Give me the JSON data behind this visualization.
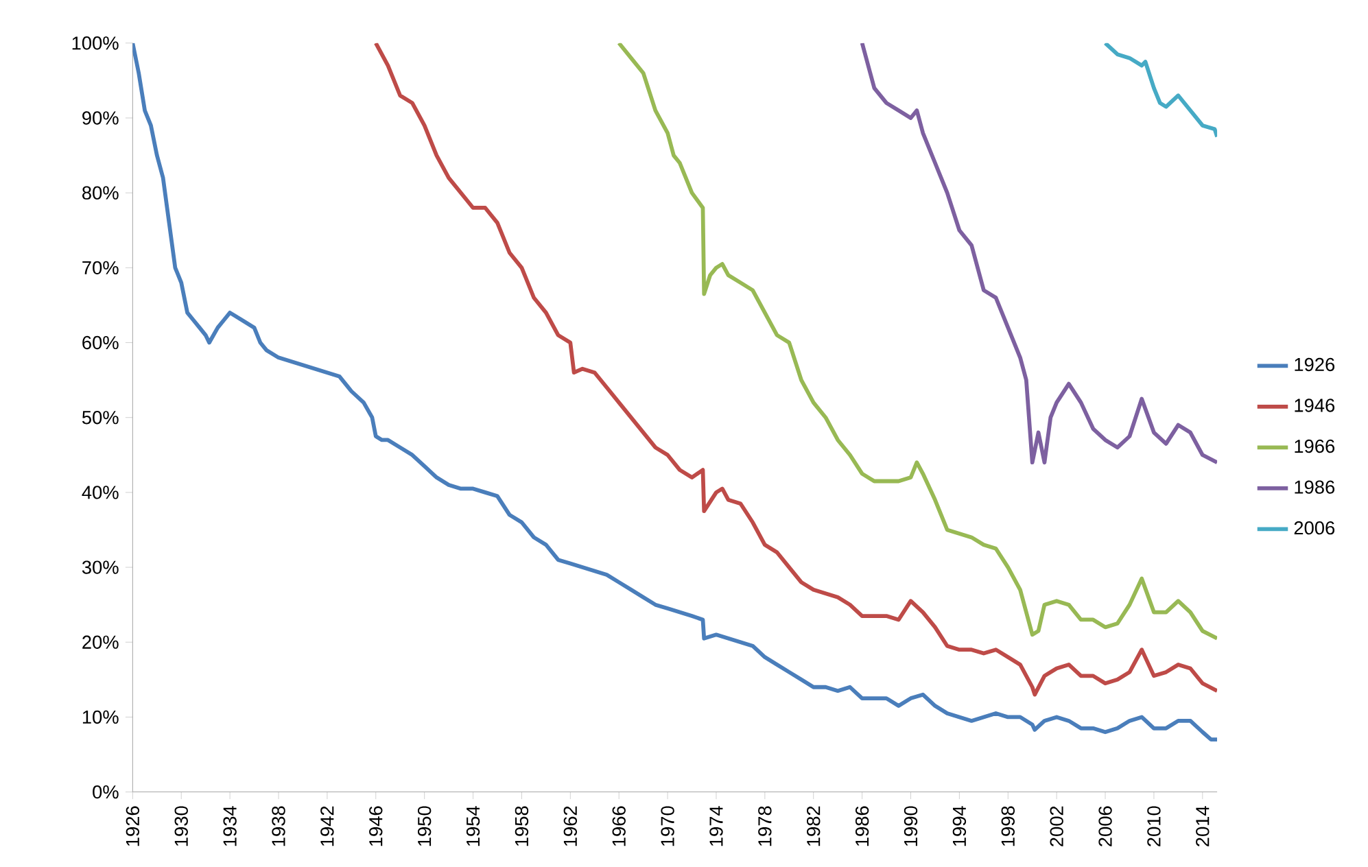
{
  "chart_data": {
    "type": "line",
    "xlim": [
      1926,
      2015.2
    ],
    "ylim": [
      0,
      100
    ],
    "xticks": [
      1926,
      1930,
      1934,
      1938,
      1942,
      1946,
      1950,
      1954,
      1958,
      1962,
      1966,
      1970,
      1974,
      1978,
      1982,
      1986,
      1990,
      1994,
      1998,
      2002,
      2006,
      2010,
      2014
    ],
    "yticks": [
      {
        "value": 0,
        "label": "0%"
      },
      {
        "value": 10,
        "label": "10%"
      },
      {
        "value": 20,
        "label": "20%"
      },
      {
        "value": 30,
        "label": "30%"
      },
      {
        "value": 40,
        "label": "40%"
      },
      {
        "value": 50,
        "label": "50%"
      },
      {
        "value": 60,
        "label": "60%"
      },
      {
        "value": 70,
        "label": "70%"
      },
      {
        "value": 80,
        "label": "80%"
      },
      {
        "value": 90,
        "label": "90%"
      },
      {
        "value": 100,
        "label": "100%"
      }
    ],
    "grid": false,
    "legend": "right",
    "marker": "none",
    "line_style": "solid",
    "series": [
      {
        "name": "1926",
        "color": "#4a7ebb",
        "x": [
          1926,
          1926.5,
          1927,
          1927.5,
          1928,
          1928.5,
          1929,
          1929.5,
          1930,
          1930.5,
          1931,
          1931.5,
          1932,
          1932.3,
          1933,
          1933.5,
          1934,
          1935,
          1936,
          1936.5,
          1937,
          1938,
          1939,
          1940,
          1941,
          1942,
          1943,
          1944,
          1945,
          1945.7,
          1946,
          1946.5,
          1947,
          1948,
          1949,
          1950,
          1951,
          1952,
          1953,
          1954,
          1955,
          1956,
          1957,
          1958,
          1959,
          1960,
          1961,
          1962,
          1963,
          1964,
          1965,
          1966,
          1967,
          1968,
          1969,
          1970,
          1971,
          1972,
          1972.9,
          1973,
          1974,
          1975,
          1976,
          1977,
          1978,
          1979,
          1980,
          1981,
          1982,
          1983,
          1984,
          1985,
          1986,
          1987,
          1988,
          1989,
          1990,
          1991,
          1992,
          1993,
          1994,
          1995,
          1996,
          1997,
          1998,
          1999,
          2000,
          2000.2,
          2001,
          2002,
          2003,
          2004,
          2005,
          2006,
          2007,
          2008,
          2009,
          2010,
          2011,
          2012,
          2013,
          2014,
          2014.7,
          2015.2
        ],
        "values": [
          100,
          96,
          91,
          89,
          85,
          82,
          76,
          70,
          68,
          64,
          63,
          62,
          61,
          60,
          62,
          63,
          64,
          63,
          62,
          60,
          59,
          58,
          57.5,
          57,
          56.5,
          56,
          55.5,
          53.5,
          52,
          50,
          47.5,
          47,
          47,
          46,
          45,
          43.5,
          42,
          41,
          40.5,
          40.5,
          40,
          39.5,
          37,
          36,
          34,
          33,
          31,
          30.5,
          30,
          29.5,
          29,
          28,
          27,
          26,
          25,
          24.5,
          24,
          23.5,
          23,
          20.5,
          21,
          20.5,
          20,
          19.5,
          18,
          17,
          16,
          15,
          14,
          14,
          13.5,
          14,
          12.5,
          12.5,
          12.5,
          11.5,
          12.5,
          13,
          11.5,
          10.5,
          10,
          9.5,
          10,
          10.5,
          10,
          10,
          9,
          8.3,
          9.5,
          10,
          9.5,
          8.5,
          8.5,
          8,
          8.5,
          9.5,
          10,
          8.5,
          8.5,
          9.5,
          9.5,
          8,
          7,
          7
        ]
      },
      {
        "name": "1946",
        "color": "#be4b48",
        "x": [
          1946,
          1947,
          1948,
          1949,
          1950,
          1951,
          1952,
          1953,
          1954,
          1955,
          1956,
          1957,
          1958,
          1959,
          1960,
          1961,
          1962,
          1962.3,
          1963,
          1964,
          1965,
          1966,
          1967,
          1968,
          1969,
          1970,
          1971,
          1972,
          1972.9,
          1973,
          1974,
          1974.5,
          1975,
          1976,
          1977,
          1978,
          1979,
          1980,
          1981,
          1982,
          1983,
          1984,
          1985,
          1986,
          1987,
          1988,
          1989,
          1990,
          1991,
          1992,
          1993,
          1994,
          1995,
          1996,
          1997,
          1998,
          1999,
          2000,
          2000.2,
          2001,
          2002,
          2003,
          2004,
          2005,
          2006,
          2007,
          2008,
          2009,
          2010,
          2011,
          2012,
          2013,
          2014,
          2015.2
        ],
        "values": [
          100,
          97,
          93,
          92,
          89,
          85,
          82,
          80,
          78,
          78,
          76,
          72,
          70,
          66,
          64,
          61,
          60,
          56,
          56.5,
          56,
          54,
          52,
          50,
          48,
          46,
          45,
          43,
          42,
          43,
          37.5,
          40,
          40.5,
          39,
          38.5,
          36,
          33,
          32,
          30,
          28,
          27,
          26.5,
          26,
          25,
          23.5,
          23.5,
          23.5,
          23,
          25.5,
          24,
          22,
          19.5,
          19,
          19,
          18.5,
          19,
          18,
          17,
          14,
          13,
          15.5,
          16.5,
          17,
          15.5,
          15.5,
          14.5,
          15,
          16,
          19,
          15.5,
          16,
          17,
          16.5,
          14.5,
          13.5
        ]
      },
      {
        "name": "1966",
        "color": "#98b954",
        "x": [
          1966,
          1967,
          1968,
          1969,
          1970,
          1970.5,
          1971,
          1972,
          1972.9,
          1973,
          1973.5,
          1974,
          1974.5,
          1975,
          1976,
          1977,
          1978,
          1979,
          1980,
          1981,
          1982,
          1983,
          1984,
          1985,
          1986,
          1987,
          1988,
          1989,
          1990,
          1990.5,
          1991,
          1992,
          1993,
          1994,
          1995,
          1996,
          1997,
          1998,
          1999,
          2000,
          2000.5,
          2001,
          2002,
          2003,
          2004,
          2005,
          2006,
          2007,
          2008,
          2009,
          2010,
          2011,
          2012,
          2013,
          2014,
          2015.2
        ],
        "values": [
          100,
          98,
          96,
          91,
          88,
          85,
          84,
          80,
          78,
          66.5,
          69,
          70,
          70.5,
          69,
          68,
          67,
          64,
          61,
          60,
          55,
          52,
          50,
          47,
          45,
          42.5,
          41.5,
          41.5,
          41.5,
          42,
          44,
          42.5,
          39,
          35,
          34.5,
          34,
          33,
          32.5,
          30,
          27,
          21,
          21.5,
          25,
          25.5,
          25,
          23,
          23,
          22,
          22.5,
          25,
          28.5,
          24,
          24,
          25.5,
          24,
          21.5,
          20.5
        ]
      },
      {
        "name": "1986",
        "color": "#7d60a0",
        "x": [
          1986,
          1987,
          1988,
          1989,
          1990,
          1990.5,
          1991,
          1992,
          1993,
          1994,
          1995,
          1996,
          1997,
          1998,
          1999,
          1999.5,
          2000,
          2000.5,
          2001,
          2001.5,
          2002,
          2003,
          2004,
          2005,
          2006,
          2007,
          2008,
          2009,
          2010,
          2011,
          2012,
          2013,
          2014,
          2015.2
        ],
        "values": [
          100,
          94,
          92,
          91,
          90,
          91,
          88,
          84,
          80,
          75,
          73,
          67,
          66,
          62,
          58,
          55,
          44,
          48,
          44,
          50,
          52,
          54.5,
          52,
          48.5,
          47,
          46,
          47.5,
          52.5,
          48,
          46.5,
          49,
          48,
          45,
          44
        ]
      },
      {
        "name": "2006",
        "color": "#46aac5",
        "x": [
          2006,
          2007,
          2008,
          2009,
          2009.3,
          2010,
          2010.5,
          2011,
          2012,
          2013,
          2014,
          2015,
          2015.2
        ],
        "values": [
          100,
          98.5,
          98,
          97,
          97.5,
          94,
          92,
          91.5,
          93,
          91,
          89,
          88.5,
          87.5
        ]
      }
    ]
  }
}
